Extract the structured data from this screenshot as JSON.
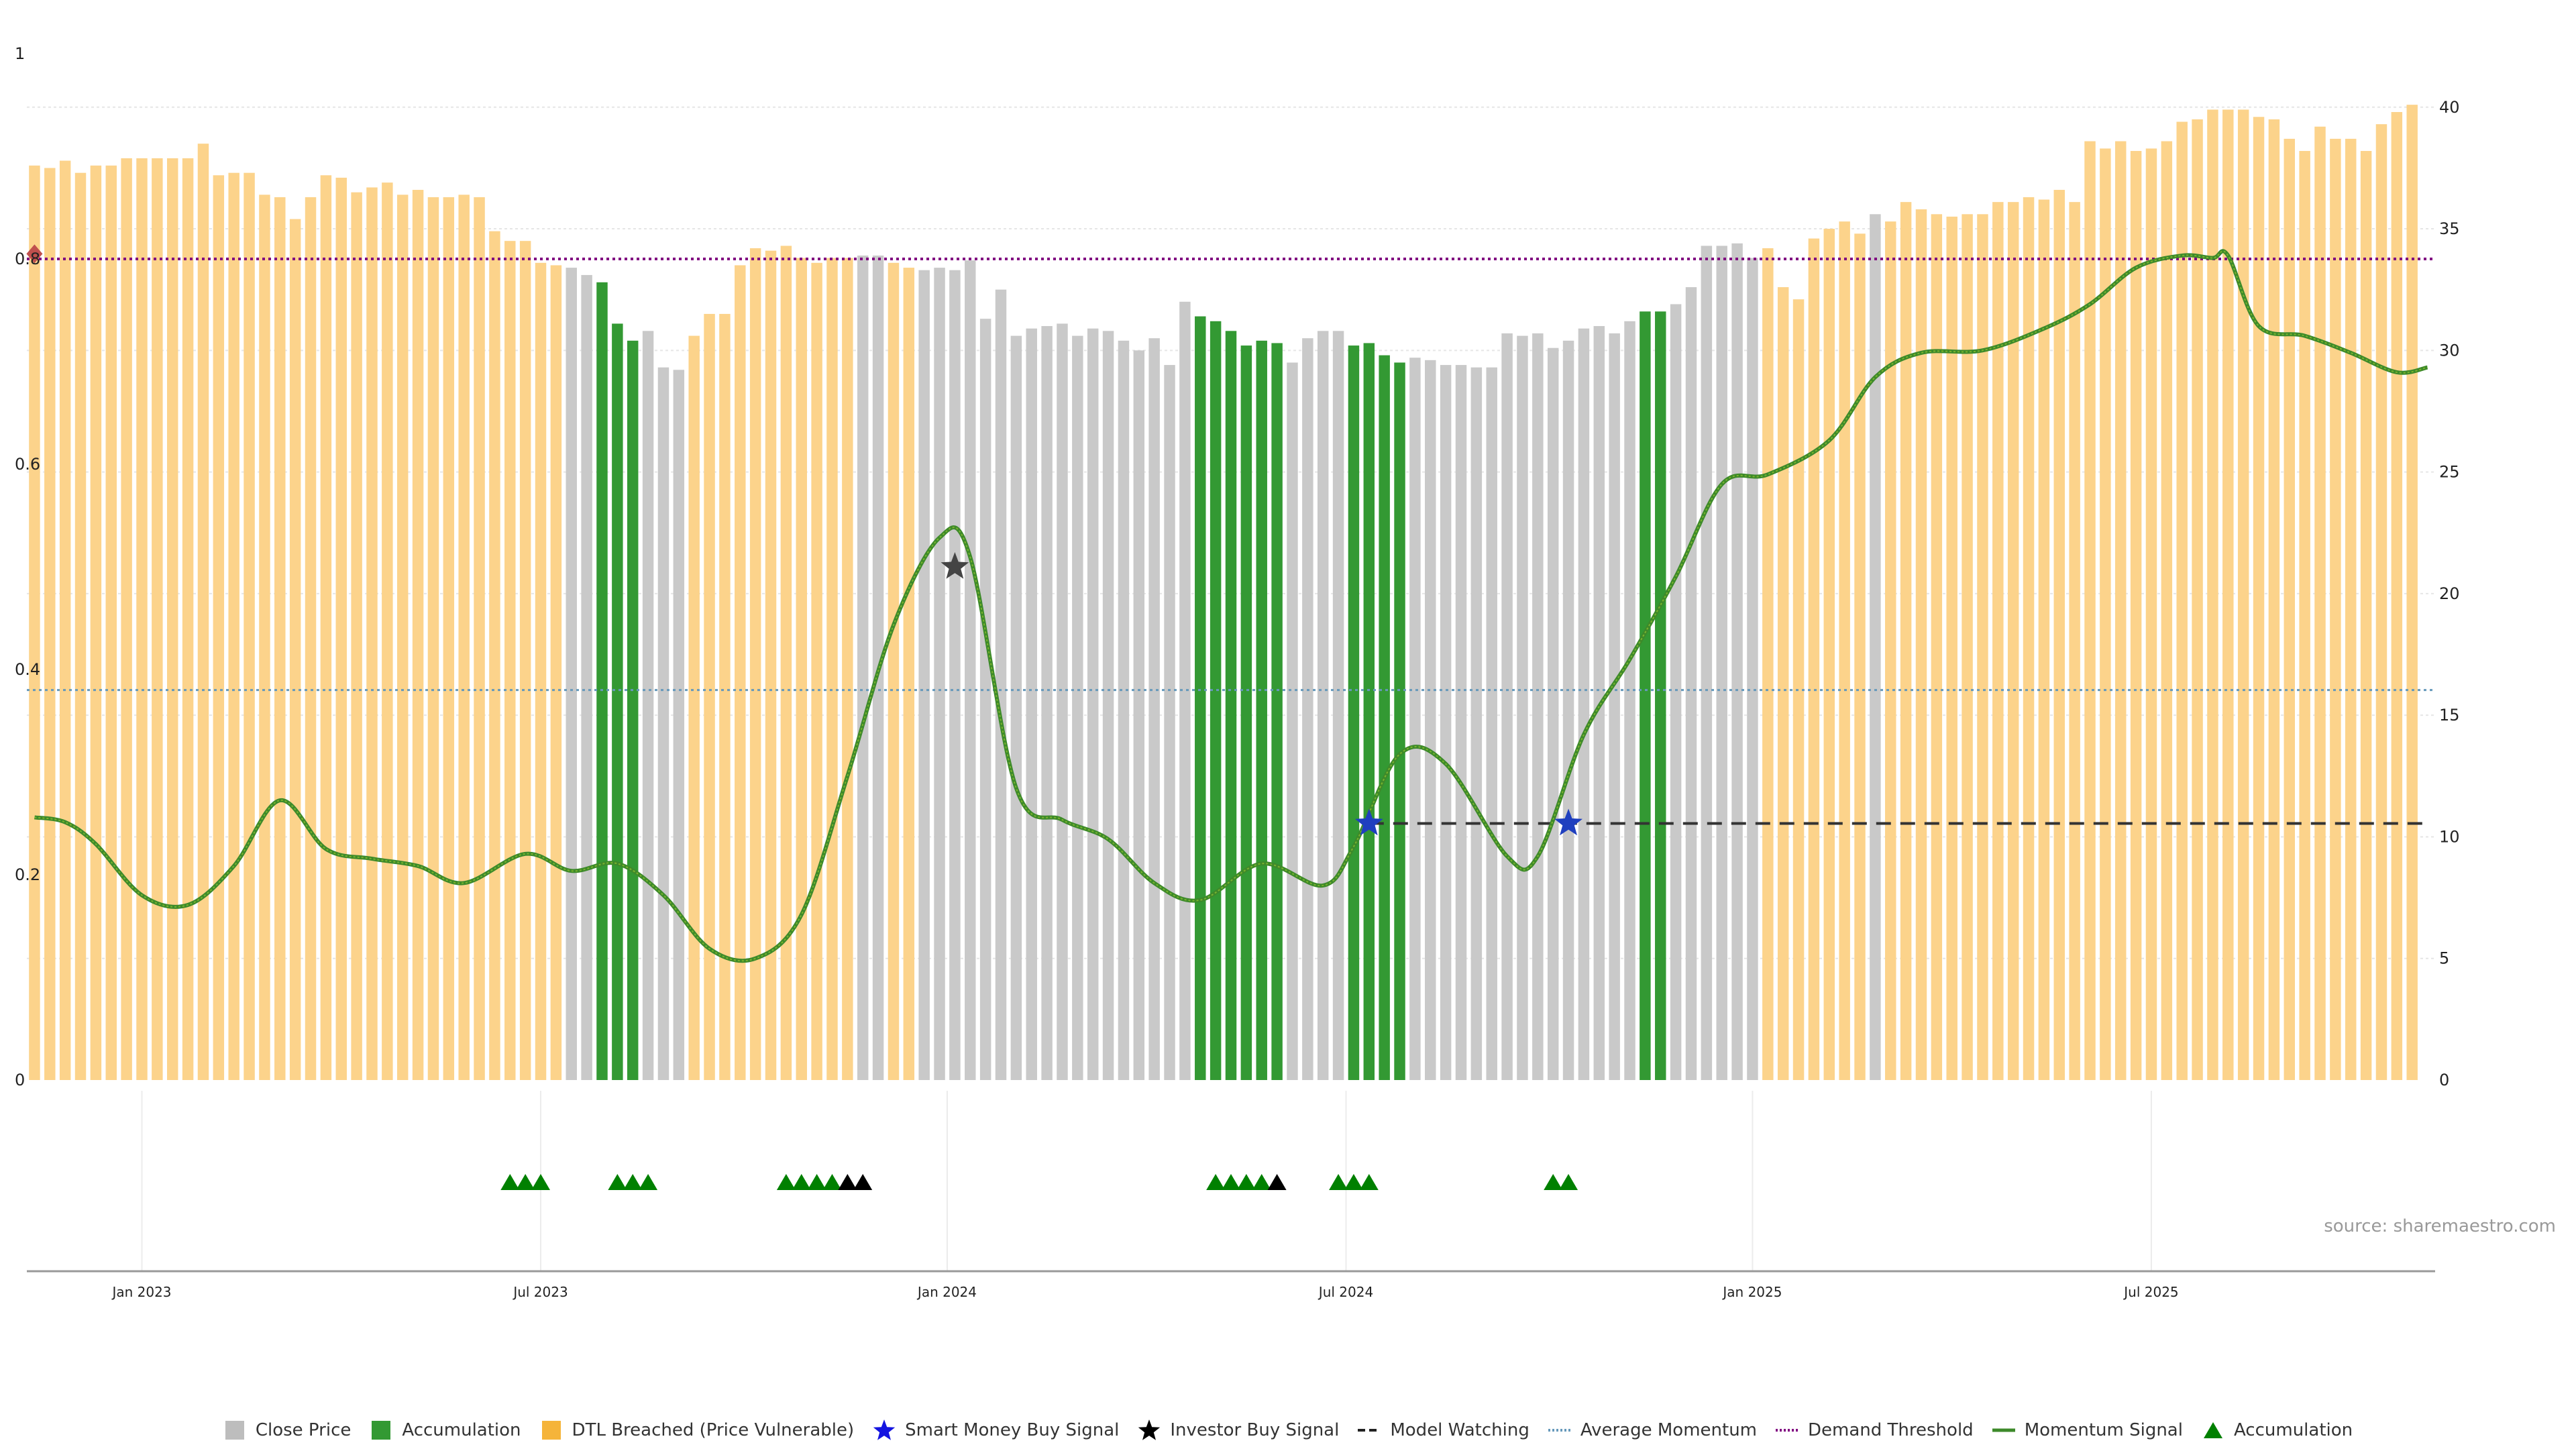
{
  "chart_data": {
    "type": "bar",
    "left_axis": {
      "ticks": [
        0,
        0.2,
        0.4,
        0.6,
        0.8,
        1
      ],
      "tick_labels": [
        "0",
        "0.2",
        "0.4",
        "0.6",
        "0.8",
        "1"
      ],
      "ylim": [
        0,
        1
      ]
    },
    "right_axis": {
      "ticks": [
        0,
        5,
        10,
        15,
        20,
        25,
        30,
        35,
        40
      ],
      "tick_labels": [
        "0",
        "5",
        "10",
        "15",
        "20",
        "25",
        "30",
        "35",
        "40"
      ],
      "ylim": [
        0,
        42.2
      ]
    },
    "x_axis": {
      "ticks": [
        {
          "label": "Jan 2023",
          "index": 7
        },
        {
          "label": "Jul 2023",
          "index": 33
        },
        {
          "label": "Jan 2024",
          "index": 59.5
        },
        {
          "label": "Jul 2024",
          "index": 85.5
        },
        {
          "label": "Jan 2025",
          "index": 112
        },
        {
          "label": "Jul 2025",
          "index": 138
        }
      ],
      "count": 157
    },
    "bars": {
      "heights": [
        37.6,
        37.5,
        37.8,
        37.3,
        37.6,
        37.6,
        37.9,
        37.9,
        37.9,
        37.9,
        37.9,
        38.5,
        37.2,
        37.3,
        37.3,
        36.4,
        36.3,
        35.4,
        36.3,
        37.2,
        37.1,
        36.5,
        36.7,
        36.9,
        36.4,
        36.6,
        36.3,
        36.3,
        36.4,
        36.3,
        34.9,
        34.5,
        34.5,
        33.6,
        33.5,
        33.4,
        33.1,
        32.8,
        31.1,
        30.4,
        30.8,
        29.3,
        29.2,
        30.6,
        31.5,
        31.5,
        33.5,
        34.2,
        34.1,
        34.3,
        33.8,
        33.6,
        33.8,
        33.8,
        33.9,
        33.9,
        33.6,
        33.4,
        33.3,
        33.4,
        33.3,
        33.7,
        31.3,
        32.5,
        30.6,
        30.9,
        31.0,
        31.1,
        30.6,
        30.9,
        30.8,
        30.4,
        30.0,
        30.5,
        29.4,
        32.0,
        31.4,
        31.2,
        30.8,
        30.2,
        30.4,
        30.3,
        29.5,
        30.5,
        30.8,
        30.8,
        30.2,
        30.3,
        29.8,
        29.5,
        29.7,
        29.6,
        29.4,
        29.4,
        29.3,
        29.3,
        30.7,
        30.6,
        30.7,
        30.1,
        30.4,
        30.9,
        31.0,
        30.7,
        31.2,
        31.6,
        31.6,
        31.9,
        32.6,
        34.3,
        34.3,
        34.4,
        33.8,
        34.2,
        32.6,
        32.1,
        34.6,
        35.0,
        35.3,
        34.8,
        35.6,
        35.3,
        36.1,
        35.8,
        35.6,
        35.5,
        35.6,
        35.6,
        36.1,
        36.1,
        36.3,
        36.2,
        36.6,
        36.1,
        38.6,
        38.3,
        38.6,
        38.2,
        38.3,
        38.6,
        39.4,
        39.5,
        39.9,
        39.9,
        39.9,
        39.6,
        39.5,
        38.7,
        38.2,
        39.2,
        38.7,
        38.7,
        38.2,
        39.3,
        39.8,
        40.1
      ],
      "colors": "OOOOOOOOOOOOOOOOOOOOOOOOOOOOOOOOOOOGGAAAGGGOOOOOOOOOOOGGOOGGGGGGGGGGGGGGGGGGAAAAAAGGGGAAAAGGGGGGGGGGGGGGGAAGGGGGGOOOOOOOGOOOOOOOOOOOOOOOOOOOOOOOOOOOOOOOOOOOOOOOOOO",
      "palette": {
        "O": "#fcd38b",
        "G": "#c9c9c9",
        "A": "#339933"
      }
    },
    "momentum_signal": {
      "color": "#3d8a2a",
      "points": [
        [
          0,
          10.8
        ],
        [
          2,
          10.6
        ],
        [
          4,
          9.7
        ],
        [
          7,
          7.6
        ],
        [
          10,
          7.2
        ],
        [
          13,
          8.8
        ],
        [
          16,
          11.5
        ],
        [
          19,
          9.5
        ],
        [
          22,
          9.1
        ],
        [
          25,
          8.8
        ],
        [
          28,
          8.1
        ],
        [
          32,
          9.3
        ],
        [
          35,
          8.6
        ],
        [
          38,
          8.9
        ],
        [
          41,
          7.6
        ],
        [
          44,
          5.4
        ],
        [
          47,
          5.0
        ],
        [
          50,
          6.8
        ],
        [
          53,
          12.5
        ],
        [
          56,
          18.7
        ],
        [
          59,
          22.3
        ],
        [
          61,
          21.5
        ],
        [
          64,
          12.0
        ],
        [
          67,
          10.7
        ],
        [
          70,
          9.9
        ],
        [
          73,
          8.1
        ],
        [
          76,
          7.4
        ],
        [
          80,
          8.9
        ],
        [
          84,
          8.0
        ],
        [
          86,
          9.6
        ],
        [
          89,
          13.4
        ],
        [
          92,
          13.0
        ],
        [
          96,
          9.2
        ],
        [
          98,
          9.2
        ],
        [
          101,
          14.2
        ],
        [
          104,
          17.3
        ],
        [
          107,
          20.7
        ],
        [
          110,
          24.5
        ],
        [
          113,
          24.9
        ],
        [
          117,
          26.3
        ],
        [
          120,
          28.9
        ],
        [
          123,
          29.9
        ],
        [
          127,
          30.0
        ],
        [
          131,
          30.9
        ],
        [
          134,
          31.9
        ],
        [
          137,
          33.4
        ],
        [
          140,
          33.9
        ],
        [
          142,
          33.8
        ],
        [
          143,
          33.9
        ],
        [
          145,
          31.0
        ],
        [
          148,
          30.6
        ],
        [
          151,
          29.9
        ],
        [
          154,
          29.1
        ],
        [
          156,
          29.3
        ]
      ]
    },
    "demand_threshold": {
      "value": 0.8,
      "color": "#800080"
    },
    "average_momentum": {
      "value": 0.38,
      "color": "#6699bb"
    },
    "model_watching": {
      "value": 0.25,
      "from_index": 87,
      "to_index": 156,
      "color": "#333333"
    },
    "stars": [
      {
        "type": "investor",
        "index": 60,
        "y": 0.5,
        "color": "#444444"
      },
      {
        "type": "smart_money",
        "index": 87,
        "y": 0.25,
        "color": "#1f3fbf"
      },
      {
        "type": "smart_money",
        "index": 100,
        "y": 0.25,
        "color": "#1f3fbf"
      }
    ],
    "start_marker": {
      "index": 0,
      "y": 0.805,
      "color": "#c0504d"
    },
    "accumulation_markers": [
      {
        "index": 31,
        "color": "green"
      },
      {
        "index": 32,
        "color": "green"
      },
      {
        "index": 33,
        "color": "green"
      },
      {
        "index": 38,
        "color": "green"
      },
      {
        "index": 39,
        "color": "green"
      },
      {
        "index": 40,
        "color": "green"
      },
      {
        "index": 49,
        "color": "green"
      },
      {
        "index": 50,
        "color": "green"
      },
      {
        "index": 51,
        "color": "green"
      },
      {
        "index": 52,
        "color": "green"
      },
      {
        "index": 53,
        "color": "black"
      },
      {
        "index": 54,
        "color": "black"
      },
      {
        "index": 77,
        "color": "green"
      },
      {
        "index": 78,
        "color": "green"
      },
      {
        "index": 79,
        "color": "green"
      },
      {
        "index": 80,
        "color": "green"
      },
      {
        "index": 81,
        "color": "black"
      },
      {
        "index": 85,
        "color": "green"
      },
      {
        "index": 86,
        "color": "green"
      },
      {
        "index": 87,
        "color": "green"
      },
      {
        "index": 99,
        "color": "green"
      },
      {
        "index": 100,
        "color": "green"
      }
    ],
    "legend": [
      {
        "label": "Close Price",
        "symbol": "square",
        "color": "#bdbdbd"
      },
      {
        "label": "Accumulation",
        "symbol": "square",
        "color": "#339933"
      },
      {
        "label": "DTL Breached (Price Vulnerable)",
        "symbol": "square",
        "color": "#f5b43a"
      },
      {
        "label": "Smart Money Buy Signal",
        "symbol": "star",
        "color": "#1414e0"
      },
      {
        "label": "Investor Buy Signal",
        "symbol": "star",
        "color": "#000000"
      },
      {
        "label": "Model Watching",
        "symbol": "dash",
        "color": "#222222"
      },
      {
        "label": "Average Momentum",
        "symbol": "dot",
        "color": "#6699bb"
      },
      {
        "label": "Demand Threshold",
        "symbol": "dot",
        "color": "#800080"
      },
      {
        "label": "Momentum Signal",
        "symbol": "line",
        "color": "#3d8a2a"
      },
      {
        "label": "Accumulation",
        "symbol": "triangle",
        "color": "#008000"
      }
    ],
    "source": "source: sharemaestro.com"
  }
}
